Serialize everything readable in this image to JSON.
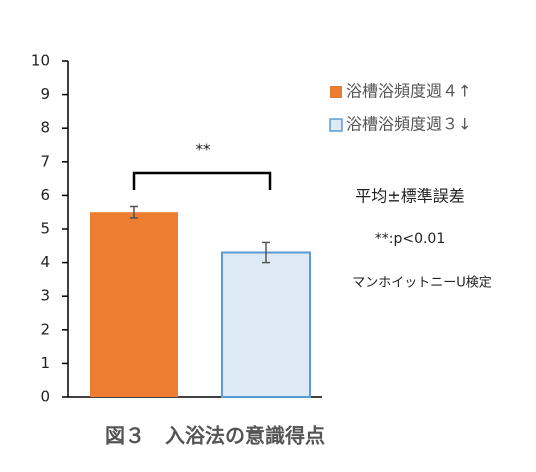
{
  "chart_data": {
    "type": "bar",
    "title": "図３　入浴法の意識得点",
    "categories": [
      null,
      null
    ],
    "series": [
      {
        "name": "浴槽浴頻度週４↑",
        "color": "#ED7D31",
        "values": [
          5.5,
          null
        ],
        "errors": [
          0.17,
          null
        ]
      },
      {
        "name": "浴槽浴頻度週３↓",
        "color": "#DDEAF6",
        "edge_color": "#5B9BD5",
        "values": [
          null,
          4.3
        ],
        "errors": [
          null,
          0.3
        ]
      }
    ],
    "ylim": [
      0,
      10
    ],
    "yticks": [
      0,
      1,
      2,
      3,
      4,
      5,
      6,
      7,
      8,
      9,
      10
    ],
    "annotations": [
      "**",
      "平均±標準誤差",
      "**:p<0.01",
      "マンホイットニーU検定"
    ]
  }
}
